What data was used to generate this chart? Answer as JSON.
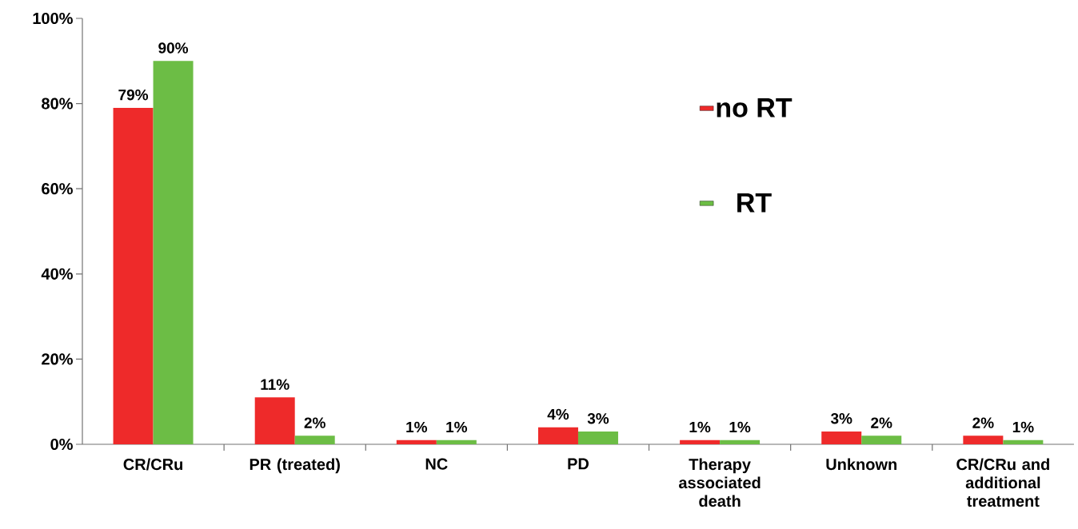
{
  "chart_data": {
    "type": "bar",
    "categories": [
      "CR/CRu",
      "PR (treated)",
      "NC",
      "PD",
      "Therapy associated death",
      "Unknown",
      "CR/CRu and additional treatment"
    ],
    "series": [
      {
        "name": "no RT",
        "color": "#ee2a2a",
        "values": [
          79,
          11,
          1,
          4,
          1,
          3,
          2
        ],
        "value_labels": [
          "79%",
          "11%",
          "1%",
          "4%",
          "1%",
          "3%",
          "2%"
        ]
      },
      {
        "name": "RT",
        "color": "#6cbd45",
        "values": [
          90,
          2,
          1,
          3,
          1,
          2,
          1
        ],
        "value_labels": [
          "90%",
          "2%",
          "1%",
          "3%",
          "1%",
          "2%",
          "1%"
        ]
      }
    ],
    "ylim": [
      0,
      100
    ],
    "yticks": [
      {
        "value": 0,
        "label": "0%"
      },
      {
        "value": 20,
        "label": "20%"
      },
      {
        "value": 40,
        "label": "40%"
      },
      {
        "value": 60,
        "label": "60%"
      },
      {
        "value": 80,
        "label": "80%"
      },
      {
        "value": 100,
        "label": "100%"
      }
    ],
    "legend": "top right",
    "grid": false
  }
}
